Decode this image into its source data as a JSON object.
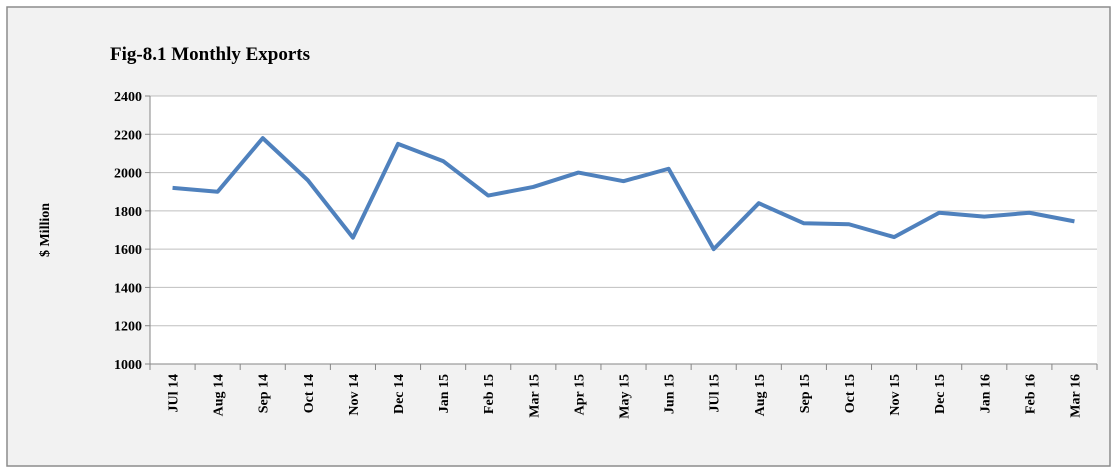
{
  "chart_data": {
    "type": "line",
    "title": "Fig-8.1 Monthly Exports",
    "y_label": "$ Million",
    "categories": [
      "JUl 14",
      "Aug 14",
      "Sep 14",
      "Oct 14",
      "Nov 14",
      "Dec 14",
      "Jan 15",
      "Feb 15",
      "Mar 15",
      "Apr 15",
      "May 15",
      "Jun 15",
      "JUl 15",
      "Aug 15",
      "Sep 15",
      "Oct 15",
      "Nov 15",
      "Dec 15",
      "Jan 16",
      "Feb 16",
      "Mar 16"
    ],
    "values": [
      1920,
      1900,
      2180,
      1960,
      1660,
      2150,
      2060,
      1880,
      1925,
      2000,
      1955,
      2020,
      1600,
      1840,
      1735,
      1730,
      1663,
      1790,
      1770,
      1790,
      1745
    ],
    "color": "#4f81bd",
    "ylim": [
      1000,
      2400
    ],
    "yticks": [
      1000,
      1200,
      1400,
      1600,
      1800,
      2000,
      2200,
      2400
    ],
    "grid": true
  }
}
